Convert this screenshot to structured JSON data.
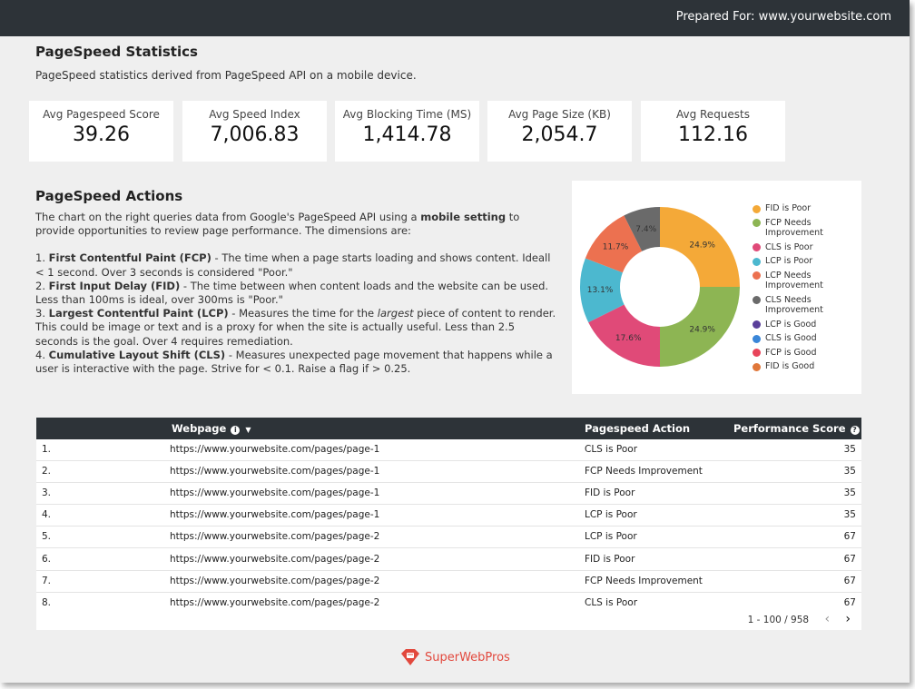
{
  "header": {
    "prepared_for": "Prepared For: www.yourwebsite.com"
  },
  "stats_section": {
    "title": "PageSpeed Statistics",
    "subtitle": "PageSpeed statistics derived from PageSpeed API on a mobile device."
  },
  "scorecards": [
    {
      "label": "Avg Pagespeed Score",
      "value": "39.26"
    },
    {
      "label": "Avg Speed Index",
      "value": "7,006.83"
    },
    {
      "label": "Avg Blocking Time (MS)",
      "value": "1,414.78"
    },
    {
      "label": "Avg Page Size (KB)",
      "value": "2,054.7"
    },
    {
      "label": "Avg Requests",
      "value": "112.16"
    }
  ],
  "actions_section": {
    "title": "PageSpeed Actions",
    "intro_a": "The chart on the right queries data from Google's PageSpeed API using a ",
    "intro_bold": "mobile setting",
    "intro_b": " to provide opportunities to review page performance. The dimensions are:",
    "d1_prefix": "1. ",
    "d1_bold": "First Contentful Paint (FCP)",
    "d1_text": " - The time when a page starts loading and shows content. Ideall < 1 second. Over 3 seconds is considered \"Poor.\"",
    "d2_prefix": "2. ",
    "d2_bold": "First Input Delay (FID)",
    "d2_text": " - The time between when content loads and the website can be used. Less than 100ms is ideal, over 300ms is \"Poor.\"",
    "d3_prefix": "3. ",
    "d3_bold": "Largest Contentful Paint (LCP)",
    "d3_text_a": " - Measures the time for the ",
    "d3_italic": "largest",
    "d3_text_b": " piece of content to render. This could be image or text and is a proxy for when the site is actually useful. Less than 2.5 seconds is the goal. Over 4 requires remediation.",
    "d4_prefix": "4. ",
    "d4_bold": "Cumulative Layout Shift (CLS)",
    "d4_text": " - Measures unexpected page movement that happens while a user is interactive with the page. Strive for < 0.1. Raise a flag if > 0.25."
  },
  "chart_data": {
    "type": "pie",
    "donut": true,
    "legend_position": "right",
    "slices": [
      {
        "label": "FID is Poor",
        "value": 24.9,
        "display": "24.9%",
        "color": "#f4a938"
      },
      {
        "label": "FCP Needs Improvement",
        "value": 24.9,
        "display": "24.9%",
        "color": "#8db553"
      },
      {
        "label": "CLS is Poor",
        "value": 17.6,
        "display": "17.6%",
        "color": "#e04a78"
      },
      {
        "label": "LCP is Poor",
        "value": 13.1,
        "display": "13.1%",
        "color": "#4cb8cf"
      },
      {
        "label": "LCP Needs Improvement",
        "value": 11.7,
        "display": "11.7%",
        "color": "#ec7150"
      },
      {
        "label": "CLS Needs Improvement",
        "value": 7.4,
        "display": "7.4%",
        "color": "#6a6a6a"
      },
      {
        "label": "LCP is Good",
        "value": 0,
        "display": "",
        "color": "#5a3f9a"
      },
      {
        "label": "CLS is Good",
        "value": 0,
        "display": "",
        "color": "#3a86d8"
      },
      {
        "label": "FCP is Good",
        "value": 0,
        "display": "",
        "color": "#e8445a"
      },
      {
        "label": "FID is Good",
        "value": 0,
        "display": "",
        "color": "#e0773a"
      }
    ]
  },
  "table": {
    "columns": {
      "webpage": "Webpage",
      "action": "Pagespeed Action",
      "score": "Performance Score"
    },
    "rows": [
      {
        "num": "1.",
        "url": "https://www.yourwebsite.com/pages/page-1",
        "action": "CLS is Poor",
        "score": "35"
      },
      {
        "num": "2.",
        "url": "https://www.yourwebsite.com/pages/page-1",
        "action": "FCP Needs Improvement",
        "score": "35"
      },
      {
        "num": "3.",
        "url": "https://www.yourwebsite.com/pages/page-1",
        "action": "FID is Poor",
        "score": "35"
      },
      {
        "num": "4.",
        "url": "https://www.yourwebsite.com/pages/page-1",
        "action": "LCP is Poor",
        "score": "35"
      },
      {
        "num": "5.",
        "url": "https://www.yourwebsite.com/pages/page-2",
        "action": "LCP is Poor",
        "score": "67"
      },
      {
        "num": "6.",
        "url": "https://www.yourwebsite.com/pages/page-2",
        "action": "FID is Poor",
        "score": "67"
      },
      {
        "num": "7.",
        "url": "https://www.yourwebsite.com/pages/page-2",
        "action": "FCP Needs Improvement",
        "score": "67"
      },
      {
        "num": "8.",
        "url": "https://www.yourwebsite.com/pages/page-2",
        "action": "CLS is Poor",
        "score": "67"
      }
    ],
    "pagination": "1 - 100 / 958",
    "info_icon": "info-icon",
    "help_icon": "question-icon"
  },
  "footer": {
    "brand": "SuperWebPros",
    "logo_icon": "diamond-logo-icon",
    "brand_color": "#e2483d"
  }
}
